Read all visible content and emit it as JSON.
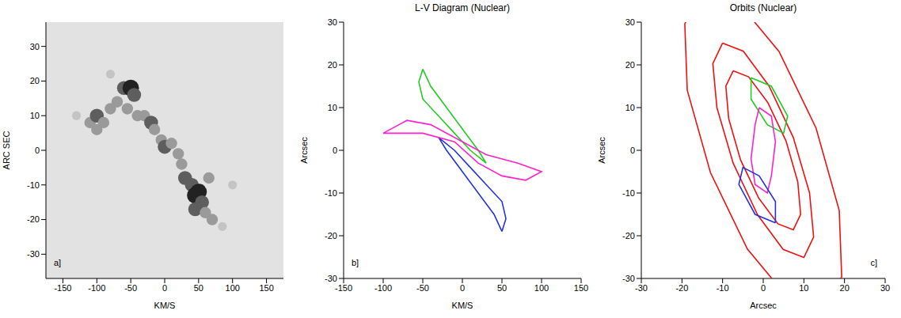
{
  "chart_data": [
    {
      "type": "scatter",
      "panel_label": "a]",
      "x_label": "KM/S",
      "y_label": "ARC SEC",
      "xlim": [
        -175,
        175
      ],
      "ylim": [
        -37,
        37
      ],
      "xticks": [
        -150,
        -100,
        -50,
        0,
        50,
        100,
        150
      ],
      "yticks": [
        -30,
        -20,
        -10,
        0,
        10,
        20,
        30
      ],
      "cells": [
        [
          -130,
          10,
          1
        ],
        [
          -110,
          8,
          2
        ],
        [
          -100,
          10,
          3
        ],
        [
          -100,
          6,
          2
        ],
        [
          -90,
          8,
          2
        ],
        [
          -80,
          12,
          2
        ],
        [
          -80,
          22,
          1
        ],
        [
          -70,
          14,
          2
        ],
        [
          -60,
          18,
          3
        ],
        [
          -50,
          18,
          4
        ],
        [
          -45,
          16,
          3
        ],
        [
          -55,
          12,
          2
        ],
        [
          -40,
          10,
          2
        ],
        [
          -30,
          10,
          2
        ],
        [
          -20,
          8,
          3
        ],
        [
          -15,
          6,
          2
        ],
        [
          -5,
          3,
          2
        ],
        [
          0,
          1,
          3
        ],
        [
          10,
          2,
          2
        ],
        [
          20,
          -1,
          2
        ],
        [
          25,
          -4,
          2
        ],
        [
          30,
          -8,
          3
        ],
        [
          40,
          -10,
          3
        ],
        [
          45,
          -13,
          4
        ],
        [
          50,
          -12,
          4
        ],
        [
          55,
          -15,
          3
        ],
        [
          45,
          -17,
          3
        ],
        [
          60,
          -18,
          2
        ],
        [
          65,
          -8,
          2
        ],
        [
          70,
          -20,
          2
        ],
        [
          85,
          -22,
          1
        ],
        [
          100,
          -10,
          1
        ]
      ]
    },
    {
      "type": "line",
      "title": "L-V Diagram (Nuclear)",
      "panel_label": "b]",
      "x_label": "KM/S",
      "y_label": "Arcsec",
      "xlim": [
        -150,
        150
      ],
      "ylim": [
        -30,
        30
      ],
      "xticks": [
        -150,
        -100,
        -50,
        0,
        50,
        100,
        150
      ],
      "yticks": [
        -30,
        -20,
        -10,
        0,
        10,
        20,
        30
      ],
      "series": [
        {
          "color": "#22cc22",
          "values": [
            [
              -50,
              19
            ],
            [
              -40,
              15
            ],
            [
              -20,
              10
            ],
            [
              0,
              5
            ],
            [
              20,
              0
            ],
            [
              30,
              -3
            ],
            [
              10,
              0
            ],
            [
              -10,
              4
            ],
            [
              -30,
              8
            ],
            [
              -50,
              12
            ],
            [
              -55,
              16
            ],
            [
              -50,
              19
            ]
          ]
        },
        {
          "color": "#2233dd",
          "values": [
            [
              50,
              -19
            ],
            [
              40,
              -15
            ],
            [
              20,
              -10
            ],
            [
              0,
              -5
            ],
            [
              -20,
              0
            ],
            [
              -30,
              3
            ],
            [
              -10,
              0
            ],
            [
              10,
              -4
            ],
            [
              30,
              -8
            ],
            [
              50,
              -12
            ],
            [
              55,
              -16
            ],
            [
              50,
              -19
            ]
          ]
        },
        {
          "color": "#ff22cc",
          "values": [
            [
              -100,
              4
            ],
            [
              -70,
              7
            ],
            [
              -40,
              6
            ],
            [
              -10,
              3
            ],
            [
              30,
              -1
            ],
            [
              70,
              -3
            ],
            [
              100,
              -5
            ],
            [
              80,
              -7
            ],
            [
              50,
              -6
            ],
            [
              20,
              -3
            ],
            [
              -10,
              2
            ],
            [
              -50,
              4
            ],
            [
              -100,
              4
            ]
          ]
        }
      ]
    },
    {
      "type": "line",
      "title": "Orbits (Nuclear)",
      "panel_label": "c]",
      "x_label": "Arcsec",
      "y_label": "Arcsec",
      "xlim": [
        -30,
        30
      ],
      "ylim": [
        -30,
        30
      ],
      "xticks": [
        -30,
        -20,
        -10,
        0,
        10,
        20,
        30
      ],
      "yticks": [
        -30,
        -20,
        -10,
        0,
        10,
        20,
        30
      ],
      "series": [
        {
          "color": "#ee1111",
          "values": [
            [
              -14.8,
              37.2
            ],
            [
              -6.3,
              34.8
            ],
            [
              3.9,
              23.1
            ],
            [
              13.0,
              5.2
            ],
            [
              18.7,
              -14.1
            ],
            [
              19.3,
              -29.6
            ],
            [
              14.8,
              -37.2
            ],
            [
              6.3,
              -34.8
            ],
            [
              -3.9,
              -23.1
            ],
            [
              -13.0,
              -5.2
            ],
            [
              -18.7,
              14.1
            ],
            [
              -19.3,
              29.6
            ],
            [
              -14.8,
              37.2
            ]
          ]
        },
        {
          "color": "#ee1111",
          "values": [
            [
              -10,
              25.1
            ],
            [
              -4.9,
              23.2
            ],
            [
              1.4,
              15.1
            ],
            [
              7.4,
              3.0
            ],
            [
              11.4,
              -10.0
            ],
            [
              12.4,
              -20.3
            ],
            [
              10,
              -25.1
            ],
            [
              4.9,
              -23.2
            ],
            [
              -1.4,
              -15.1
            ],
            [
              -7.4,
              -3.0
            ],
            [
              -11.4,
              10.0
            ],
            [
              -12.4,
              20.3
            ],
            [
              -10,
              25.1
            ]
          ]
        },
        {
          "color": "#ee1111",
          "values": [
            [
              -7.4,
              18.6
            ],
            [
              -3.6,
              17.2
            ],
            [
              1.1,
              11.2
            ],
            [
              5.6,
              2.2
            ],
            [
              8.5,
              -7.4
            ],
            [
              9.2,
              -15.0
            ],
            [
              7.4,
              -18.6
            ],
            [
              3.6,
              -17.2
            ],
            [
              -1.1,
              -11.2
            ],
            [
              -5.6,
              -2.2
            ],
            [
              -8.5,
              7.4
            ],
            [
              -9.2,
              15.0
            ],
            [
              -7.4,
              18.6
            ]
          ]
        },
        {
          "color": "#22cc22",
          "values": [
            [
              -3,
              17
            ],
            [
              2,
              15
            ],
            [
              6,
              8
            ],
            [
              5,
              4
            ],
            [
              1,
              6
            ],
            [
              -3,
              12
            ],
            [
              -3,
              17
            ]
          ]
        },
        {
          "color": "#ff22cc",
          "values": [
            [
              -1,
              10
            ],
            [
              2,
              8
            ],
            [
              3,
              2
            ],
            [
              2,
              -6
            ],
            [
              1,
              -10
            ],
            [
              -2,
              -8
            ],
            [
              -3,
              -2
            ],
            [
              -2,
              6
            ],
            [
              -1,
              10
            ]
          ]
        },
        {
          "color": "#2233dd",
          "values": [
            [
              3,
              -17
            ],
            [
              -2,
              -15
            ],
            [
              -6,
              -8
            ],
            [
              -5,
              -4
            ],
            [
              -1,
              -6
            ],
            [
              3,
              -12
            ],
            [
              3,
              -17
            ]
          ]
        }
      ]
    }
  ]
}
